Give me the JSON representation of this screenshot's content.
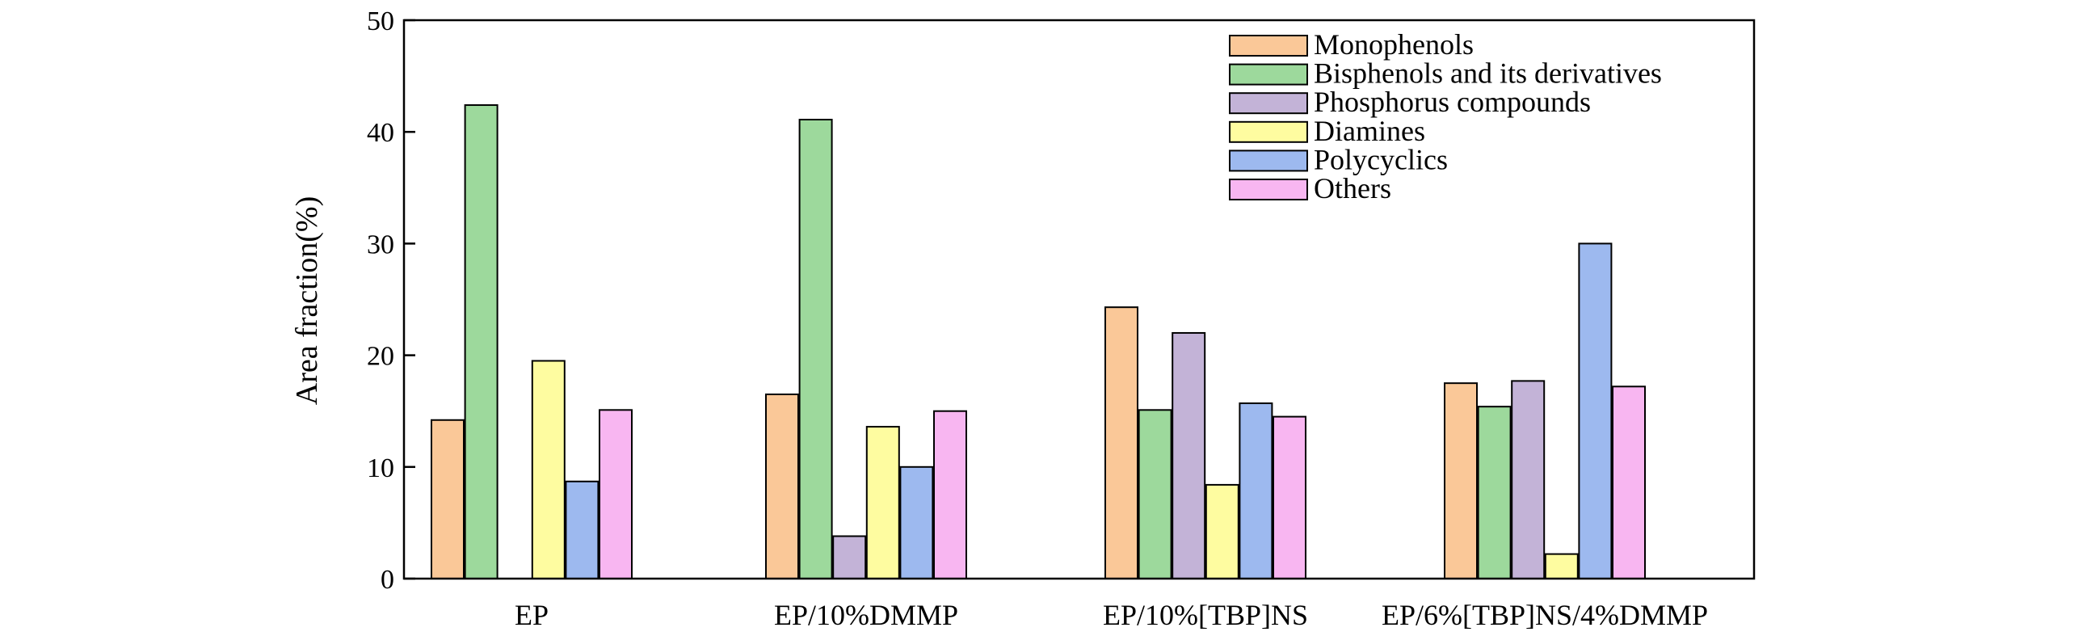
{
  "chart_data": {
    "type": "bar",
    "title": "",
    "xlabel": "",
    "ylabel": "Area fraction(%)",
    "ylim": [
      0,
      50
    ],
    "yticks": [
      0,
      10,
      20,
      30,
      40,
      50
    ],
    "categories": [
      "EP",
      "EP/10%DMMP",
      "EP/10%[TBP]NS",
      "EP/6%[TBP]NS/4%DMMP"
    ],
    "legend_position": "top-right",
    "grid": false,
    "series": [
      {
        "name": "Monophenols",
        "color": "#FAC898",
        "values": [
          14.2,
          16.5,
          24.3,
          17.5
        ]
      },
      {
        "name": "Bisphenols and its derivatives",
        "color": "#9DD99C",
        "values": [
          42.4,
          41.1,
          15.1,
          15.4
        ]
      },
      {
        "name": "Phosphorus compounds",
        "color": "#C3B3D7",
        "values": [
          null,
          3.8,
          22.0,
          17.7
        ]
      },
      {
        "name": "Diamines",
        "color": "#FEFCA0",
        "values": [
          19.5,
          13.6,
          8.4,
          2.2
        ]
      },
      {
        "name": "Polycyclics",
        "color": "#9DB9EF",
        "values": [
          8.7,
          10.0,
          15.7,
          30.0
        ]
      },
      {
        "name": "Others",
        "color": "#F8B6F1",
        "values": [
          15.1,
          15.0,
          14.5,
          17.2
        ]
      }
    ]
  }
}
